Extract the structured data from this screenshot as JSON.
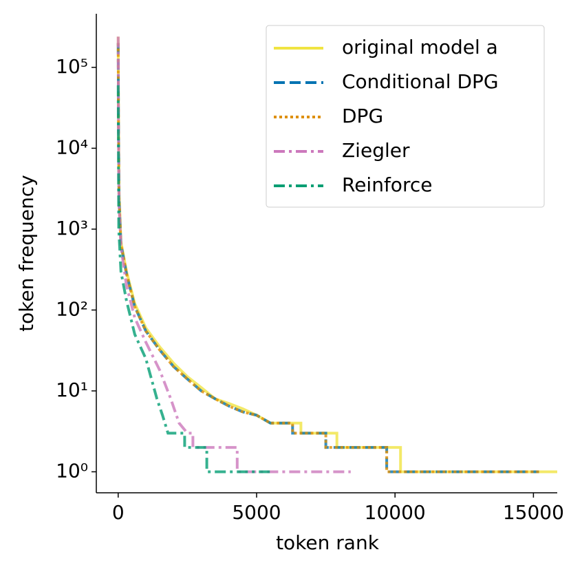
{
  "chart_data": {
    "type": "line",
    "xlabel": "token rank",
    "ylabel": "token frequency",
    "yscale": "log",
    "xlim": [
      -790,
      15860
    ],
    "ylim": [
      0.55,
      460000
    ],
    "xticks": [
      0,
      5000,
      10000,
      15000
    ],
    "yticks": [
      {
        "value": 1,
        "label": "10⁰"
      },
      {
        "value": 10,
        "label": "10¹"
      },
      {
        "value": 100,
        "label": "10²"
      },
      {
        "value": 1000,
        "label": "10³"
      },
      {
        "value": 10000,
        "label": "10⁴"
      },
      {
        "value": 100000,
        "label": "10⁵"
      }
    ],
    "legend": "upper right",
    "series": [
      {
        "name": "original model a",
        "color": "#f0e442",
        "linestyle": "solid",
        "x": [
          0,
          10,
          30,
          100,
          300,
          600,
          1000,
          1500,
          2000,
          2500,
          3000,
          3500,
          4000,
          4500,
          5000,
          5500,
          6600,
          6600,
          7900,
          7900,
          10200,
          10200,
          15900
        ],
        "values": [
          240000,
          30000,
          3000,
          700,
          300,
          120,
          60,
          35,
          22,
          15,
          11,
          8,
          7,
          6,
          5,
          4,
          4,
          3,
          3,
          2,
          2,
          1,
          1
        ]
      },
      {
        "name": "Conditional DPG",
        "color": "#0173b2",
        "linestyle": "dashed",
        "x": [
          0,
          10,
          30,
          100,
          300,
          600,
          1000,
          1500,
          2000,
          2500,
          3000,
          3500,
          4000,
          4500,
          5000,
          5500,
          6300,
          6300,
          7500,
          7500,
          9700,
          9700,
          15200
        ],
        "values": [
          200000,
          25000,
          2500,
          650,
          280,
          110,
          55,
          32,
          20,
          14,
          10,
          8,
          6.5,
          5.5,
          5,
          4,
          4,
          3,
          3,
          2,
          2,
          1,
          1
        ]
      },
      {
        "name": "DPG",
        "color": "#de8f05",
        "linestyle": "dotted",
        "x": [
          0,
          10,
          30,
          100,
          300,
          600,
          1000,
          1500,
          2000,
          2500,
          3000,
          3500,
          4000,
          4500,
          5000,
          5500,
          6300,
          6300,
          7500,
          7500,
          9700,
          9700,
          15200
        ],
        "values": [
          200000,
          25000,
          2500,
          650,
          280,
          110,
          55,
          32,
          20,
          14,
          10,
          8,
          6.5,
          5.5,
          5,
          4,
          4,
          3,
          3,
          2,
          2,
          1,
          1
        ]
      },
      {
        "name": "Ziegler",
        "color": "#cc78bc",
        "linestyle": "dashdot",
        "x": [
          0,
          10,
          30,
          100,
          300,
          600,
          1000,
          1500,
          1900,
          2200,
          2500,
          2700,
          2700,
          4300,
          4300,
          8400
        ],
        "values": [
          240000,
          20000,
          2000,
          600,
          200,
          80,
          40,
          18,
          8,
          4,
          3,
          3,
          2,
          2,
          1,
          1
        ]
      },
      {
        "name": "Reinforce",
        "color": "#029e73",
        "linestyle": "dashdot",
        "x": [
          0,
          10,
          20,
          100,
          300,
          600,
          1000,
          1400,
          1600,
          1800,
          2400,
          2400,
          3200,
          3200,
          5500
        ],
        "values": [
          60000,
          8000,
          1000,
          300,
          130,
          50,
          25,
          8,
          5,
          3,
          3,
          2,
          2,
          1,
          1
        ]
      }
    ]
  }
}
